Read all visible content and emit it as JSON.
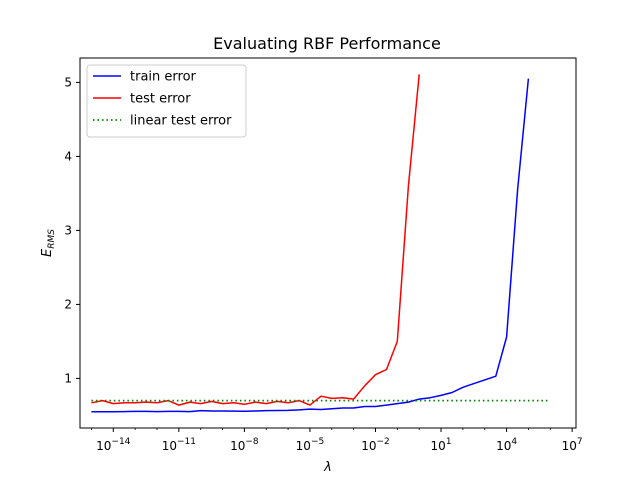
{
  "chart_data": {
    "type": "line",
    "title": "Evaluating RBF Performance",
    "xlabel": "λ",
    "ylabel": "E",
    "ylabel_subscript": "RMS",
    "x_scale": "log",
    "xlim": [
      3e-16,
      15000000.0
    ],
    "ylim": [
      0.33,
      5.33
    ],
    "x_ticks": [
      {
        "value": 1e-14,
        "base": "10",
        "exp": "−14"
      },
      {
        "value": 1e-11,
        "base": "10",
        "exp": "−11"
      },
      {
        "value": 1e-08,
        "base": "10",
        "exp": "−8"
      },
      {
        "value": 1e-05,
        "base": "10",
        "exp": "−5"
      },
      {
        "value": 0.01,
        "base": "10",
        "exp": "−2"
      },
      {
        "value": 10,
        "base": "10",
        "exp": "1"
      },
      {
        "value": 10000.0,
        "base": "10",
        "exp": "4"
      },
      {
        "value": 10000000.0,
        "base": "10",
        "exp": "7"
      }
    ],
    "y_ticks": [
      {
        "value": 1,
        "label": "1"
      },
      {
        "value": 2,
        "label": "2"
      },
      {
        "value": 3,
        "label": "3"
      },
      {
        "value": 4,
        "label": "4"
      },
      {
        "value": 5,
        "label": "5"
      }
    ],
    "grid": false,
    "legend_position": "top-left",
    "x": [
      1e-15,
      3.2e-15,
      1e-14,
      3.2e-14,
      1e-13,
      3.2e-13,
      1e-12,
      3.2e-12,
      1e-11,
      3.2e-11,
      1e-10,
      3.2e-10,
      1e-09,
      3.2e-09,
      1e-08,
      3.2e-08,
      1e-07,
      3.2e-07,
      1e-06,
      3.2e-06,
      1e-05,
      3.2e-05,
      0.0001,
      0.00032,
      0.001,
      0.0032,
      0.01,
      0.032,
      0.1,
      0.32,
      1,
      3.2,
      10,
      32,
      100,
      320,
      1000,
      3200,
      10000,
      32000,
      100000,
      320000,
      1000000
    ],
    "series": [
      {
        "name": "train error",
        "color": "#0000ff",
        "style": "solid",
        "values": [
          0.55,
          0.55,
          0.55,
          0.552,
          0.555,
          0.555,
          0.552,
          0.555,
          0.555,
          0.552,
          0.565,
          0.56,
          0.56,
          0.558,
          0.556,
          0.56,
          0.565,
          0.566,
          0.568,
          0.575,
          0.585,
          0.58,
          0.59,
          0.6,
          0.6,
          0.62,
          0.62,
          0.64,
          0.66,
          0.68,
          0.72,
          0.74,
          0.77,
          0.81,
          0.88,
          0.93,
          0.98,
          1.03,
          1.56,
          3.55,
          5.05,
          null,
          null
        ]
      },
      {
        "name": "test error",
        "color": "#ff0000",
        "style": "solid",
        "values": [
          0.67,
          0.7,
          0.66,
          0.67,
          0.67,
          0.68,
          0.67,
          0.7,
          0.64,
          0.68,
          0.66,
          0.69,
          0.66,
          0.67,
          0.65,
          0.68,
          0.66,
          0.69,
          0.67,
          0.7,
          0.64,
          0.76,
          0.73,
          0.74,
          0.72,
          0.9,
          1.05,
          1.12,
          1.5,
          3.6,
          5.11,
          null,
          null,
          null,
          null,
          null,
          null,
          null,
          null,
          null,
          null,
          null,
          null
        ]
      },
      {
        "name": "linear test error",
        "color": "#008000",
        "style": "dotted",
        "values": [
          0.7,
          0.7,
          0.7,
          0.7,
          0.7,
          0.7,
          0.7,
          0.7,
          0.7,
          0.7,
          0.7,
          0.7,
          0.7,
          0.7,
          0.7,
          0.7,
          0.7,
          0.7,
          0.7,
          0.7,
          0.7,
          0.7,
          0.7,
          0.7,
          0.7,
          0.7,
          0.7,
          0.7,
          0.7,
          0.7,
          0.7,
          0.7,
          0.7,
          0.7,
          0.7,
          0.7,
          0.7,
          0.7,
          0.7,
          0.7,
          0.7,
          0.7,
          0.7
        ]
      }
    ]
  }
}
